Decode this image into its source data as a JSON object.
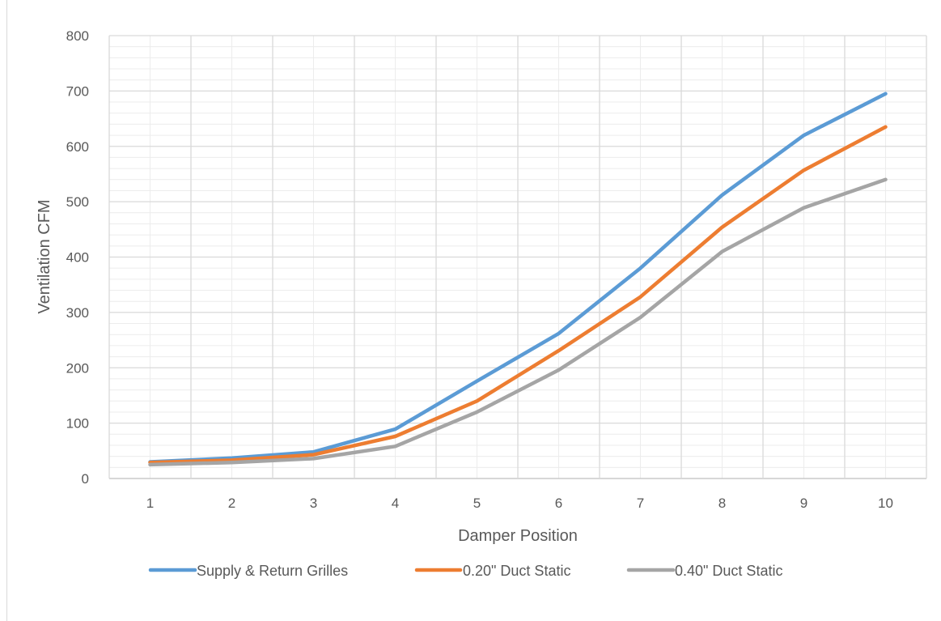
{
  "chart_data": {
    "type": "line",
    "xlabel": "Damper Position",
    "ylabel": "Ventilation CFM",
    "categories": [
      "1",
      "2",
      "3",
      "4",
      "5",
      "6",
      "7",
      "8",
      "9",
      "10"
    ],
    "ylim": [
      0,
      800
    ],
    "y_ticks": [
      "0",
      "100",
      "200",
      "300",
      "400",
      "500",
      "600",
      "700",
      "800"
    ],
    "grid": true,
    "minor_grid": true,
    "legend_position": "bottom",
    "series": [
      {
        "name": "Supply & Return Grilles",
        "color": "#5b9bd5",
        "values": [
          30,
          37,
          48,
          89,
          176,
          262,
          380,
          512,
          620,
          695
        ]
      },
      {
        "name": "0.20\" Duct Static",
        "color": "#ed7d31",
        "values": [
          29,
          33,
          43,
          76,
          140,
          231,
          328,
          454,
          557,
          635
        ]
      },
      {
        "name": "0.40\" Duct Static",
        "color": "#a5a5a5",
        "values": [
          25,
          29,
          36,
          58,
          120,
          196,
          291,
          410,
          489,
          540
        ]
      }
    ]
  }
}
